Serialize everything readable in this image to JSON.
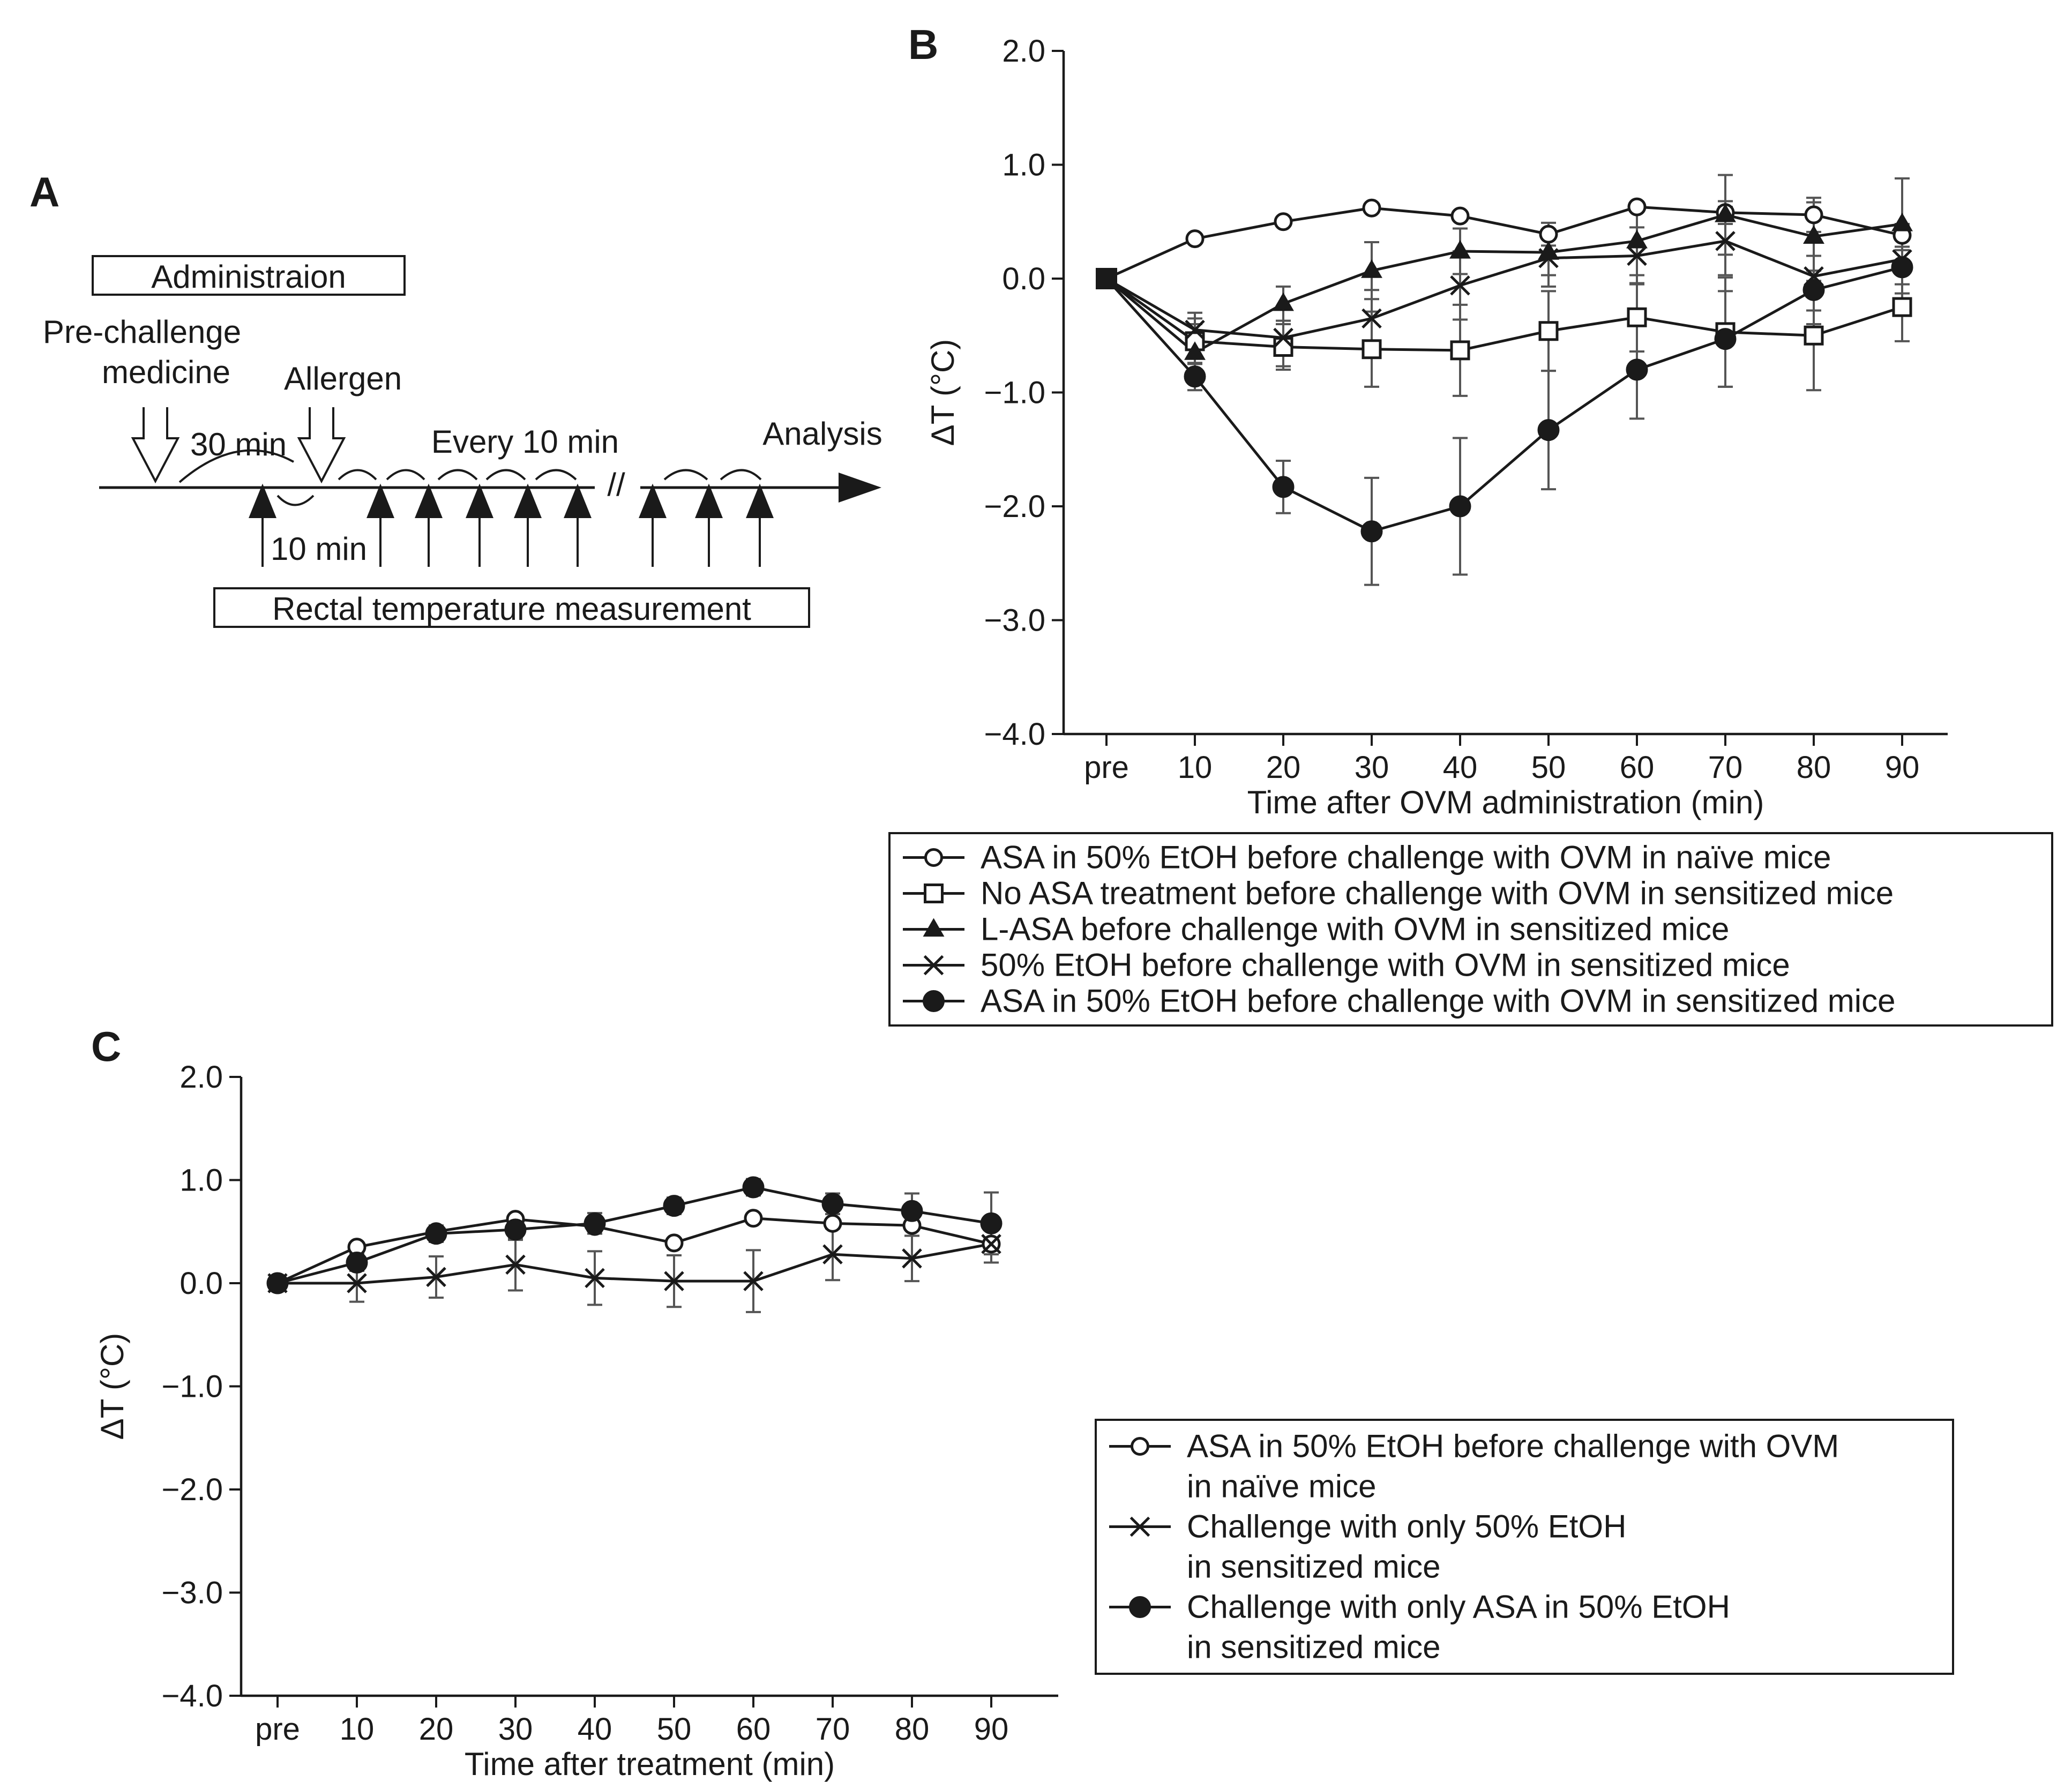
{
  "panels": {
    "a": "A",
    "b": "B",
    "c": "C"
  },
  "diagram": {
    "administration_label": "Administraion",
    "pre_challenge_label_line1": "Pre-challenge",
    "pre_challenge_label_line2": "medicine",
    "allergen_label": "Allergen",
    "interval_30": "30 min",
    "interval_10": "10 min",
    "every_10": "Every 10 min",
    "break_mark": "//",
    "analysis_label": "Analysis",
    "measurement_label": "Rectal temperature measurement"
  },
  "chart_data": [
    {
      "id": "B",
      "type": "line",
      "categories": [
        "pre",
        "10",
        "20",
        "30",
        "40",
        "50",
        "60",
        "70",
        "80",
        "90"
      ],
      "xlabel": "Time after OVM administration (min)",
      "ylabel": "ΔT (°C)",
      "ylim": [
        -4.0,
        2.0
      ],
      "yticks": [
        2.0,
        1.0,
        0.0,
        -1.0,
        -2.0,
        -3.0,
        -4.0
      ],
      "ytick_labels": [
        "2.0",
        "1.0",
        "0.0",
        "−1.0",
        "−2.0",
        "−3.0",
        "−4.0"
      ],
      "legend_position": "below",
      "series": [
        {
          "name": "ASA in 50% EtOH before challenge with OVM in naïve mice",
          "legend_lines": [
            "ASA in 50% EtOH before challenge with OVM in naïve mice"
          ],
          "marker": "open-circle",
          "values": [
            0.0,
            0.35,
            0.5,
            0.62,
            0.55,
            0.39,
            0.63,
            0.58,
            0.56,
            0.38
          ],
          "errors": [
            0,
            0,
            0,
            0,
            0,
            0.1,
            0,
            0.1,
            0.15,
            0.1
          ]
        },
        {
          "name": "No ASA treatment before challenge with OVM in sensitized mice",
          "legend_lines": [
            "No ASA treatment before challenge with OVM in sensitized mice"
          ],
          "marker": "open-square",
          "values": [
            0.0,
            -0.55,
            -0.6,
            -0.62,
            -0.63,
            -0.46,
            -0.34,
            -0.47,
            -0.5,
            -0.25
          ],
          "errors": [
            0,
            0.2,
            0.2,
            0.33,
            0.4,
            0.35,
            0.3,
            0.48,
            0.48,
            0.3
          ]
        },
        {
          "name": "L-ASA before challenge with OVM in sensitized mice",
          "legend_lines": [
            "L-ASA before challenge with OVM in sensitized mice"
          ],
          "marker": "filled-triangle",
          "values": [
            0.0,
            -0.65,
            -0.22,
            0.07,
            0.24,
            0.23,
            0.33,
            0.56,
            0.37,
            0.48
          ],
          "errors": [
            0,
            0.25,
            0.15,
            0.25,
            0.2,
            0.2,
            0.3,
            0.35,
            0.3,
            0.4
          ]
        },
        {
          "name": "50% EtOH before challenge with OVM in sensitized mice",
          "legend_lines": [
            "50% EtOH before challenge with OVM in sensitized mice"
          ],
          "marker": "cross",
          "values": [
            0.0,
            -0.45,
            -0.52,
            -0.35,
            -0.06,
            0.18,
            0.2,
            0.33,
            0.02,
            0.17
          ],
          "errors": [
            0,
            0.15,
            0.25,
            0.25,
            0.3,
            0.25,
            0.25,
            0.3,
            0.3,
            0.3
          ]
        },
        {
          "name": "ASA in 50% EtOH before challenge with OVM in sensitized mice",
          "legend_lines": [
            "ASA in 50% EtOH before challenge with OVM in sensitized mice"
          ],
          "marker": "filled-circle",
          "values": [
            0.0,
            -0.86,
            -1.83,
            -2.22,
            -2.0,
            -1.33,
            -0.8,
            -0.53,
            -0.1,
            0.1
          ],
          "errors": [
            0,
            0.12,
            0.23,
            0.47,
            0.6,
            0.52,
            0.43,
            0.42,
            0.3,
            0.15
          ]
        }
      ]
    },
    {
      "id": "C",
      "type": "line",
      "categories": [
        "pre",
        "10",
        "20",
        "30",
        "40",
        "50",
        "60",
        "70",
        "80",
        "90"
      ],
      "xlabel": "Time after treatment (min)",
      "ylabel": "ΔT (°C)",
      "ylim": [
        -4.0,
        2.0
      ],
      "yticks": [
        2.0,
        1.0,
        0.0,
        -1.0,
        -2.0,
        -3.0,
        -4.0
      ],
      "ytick_labels": [
        "2.0",
        "1.0",
        "0.0",
        "−1.0",
        "−2.0",
        "−3.0",
        "−4.0"
      ],
      "legend_position": "right",
      "series": [
        {
          "name": "ASA in 50% EtOH before challenge with OVM in naïve mice",
          "legend_lines": [
            "ASA in 50% EtOH before challenge with OVM",
            "in naïve mice"
          ],
          "marker": "open-circle",
          "values": [
            0.0,
            0.35,
            0.5,
            0.62,
            0.55,
            0.39,
            0.63,
            0.58,
            0.56,
            0.38
          ],
          "errors": [
            0,
            0,
            0,
            0,
            0,
            0,
            0,
            0,
            0,
            0
          ]
        },
        {
          "name": "Challenge with only 50% EtOH in sensitized mice",
          "legend_lines": [
            "Challenge with only 50% EtOH",
            "in sensitized mice"
          ],
          "marker": "cross",
          "values": [
            0.0,
            0.0,
            0.06,
            0.18,
            0.05,
            0.02,
            0.02,
            0.28,
            0.24,
            0.38
          ],
          "errors": [
            0,
            0.18,
            0.2,
            0.25,
            0.26,
            0.25,
            0.3,
            0.25,
            0.22,
            0.18
          ]
        },
        {
          "name": "Challenge with only ASA in 50% EtOH in sensitized mice",
          "legend_lines": [
            "Challenge with only ASA in 50% EtOH",
            "in sensitized mice"
          ],
          "marker": "filled-circle",
          "values": [
            0.0,
            0.2,
            0.48,
            0.52,
            0.58,
            0.75,
            0.93,
            0.77,
            0.7,
            0.58
          ],
          "errors": [
            0,
            0.08,
            0.08,
            0.1,
            0.1,
            0.08,
            0.08,
            0.1,
            0.17,
            0.3
          ]
        }
      ]
    }
  ]
}
